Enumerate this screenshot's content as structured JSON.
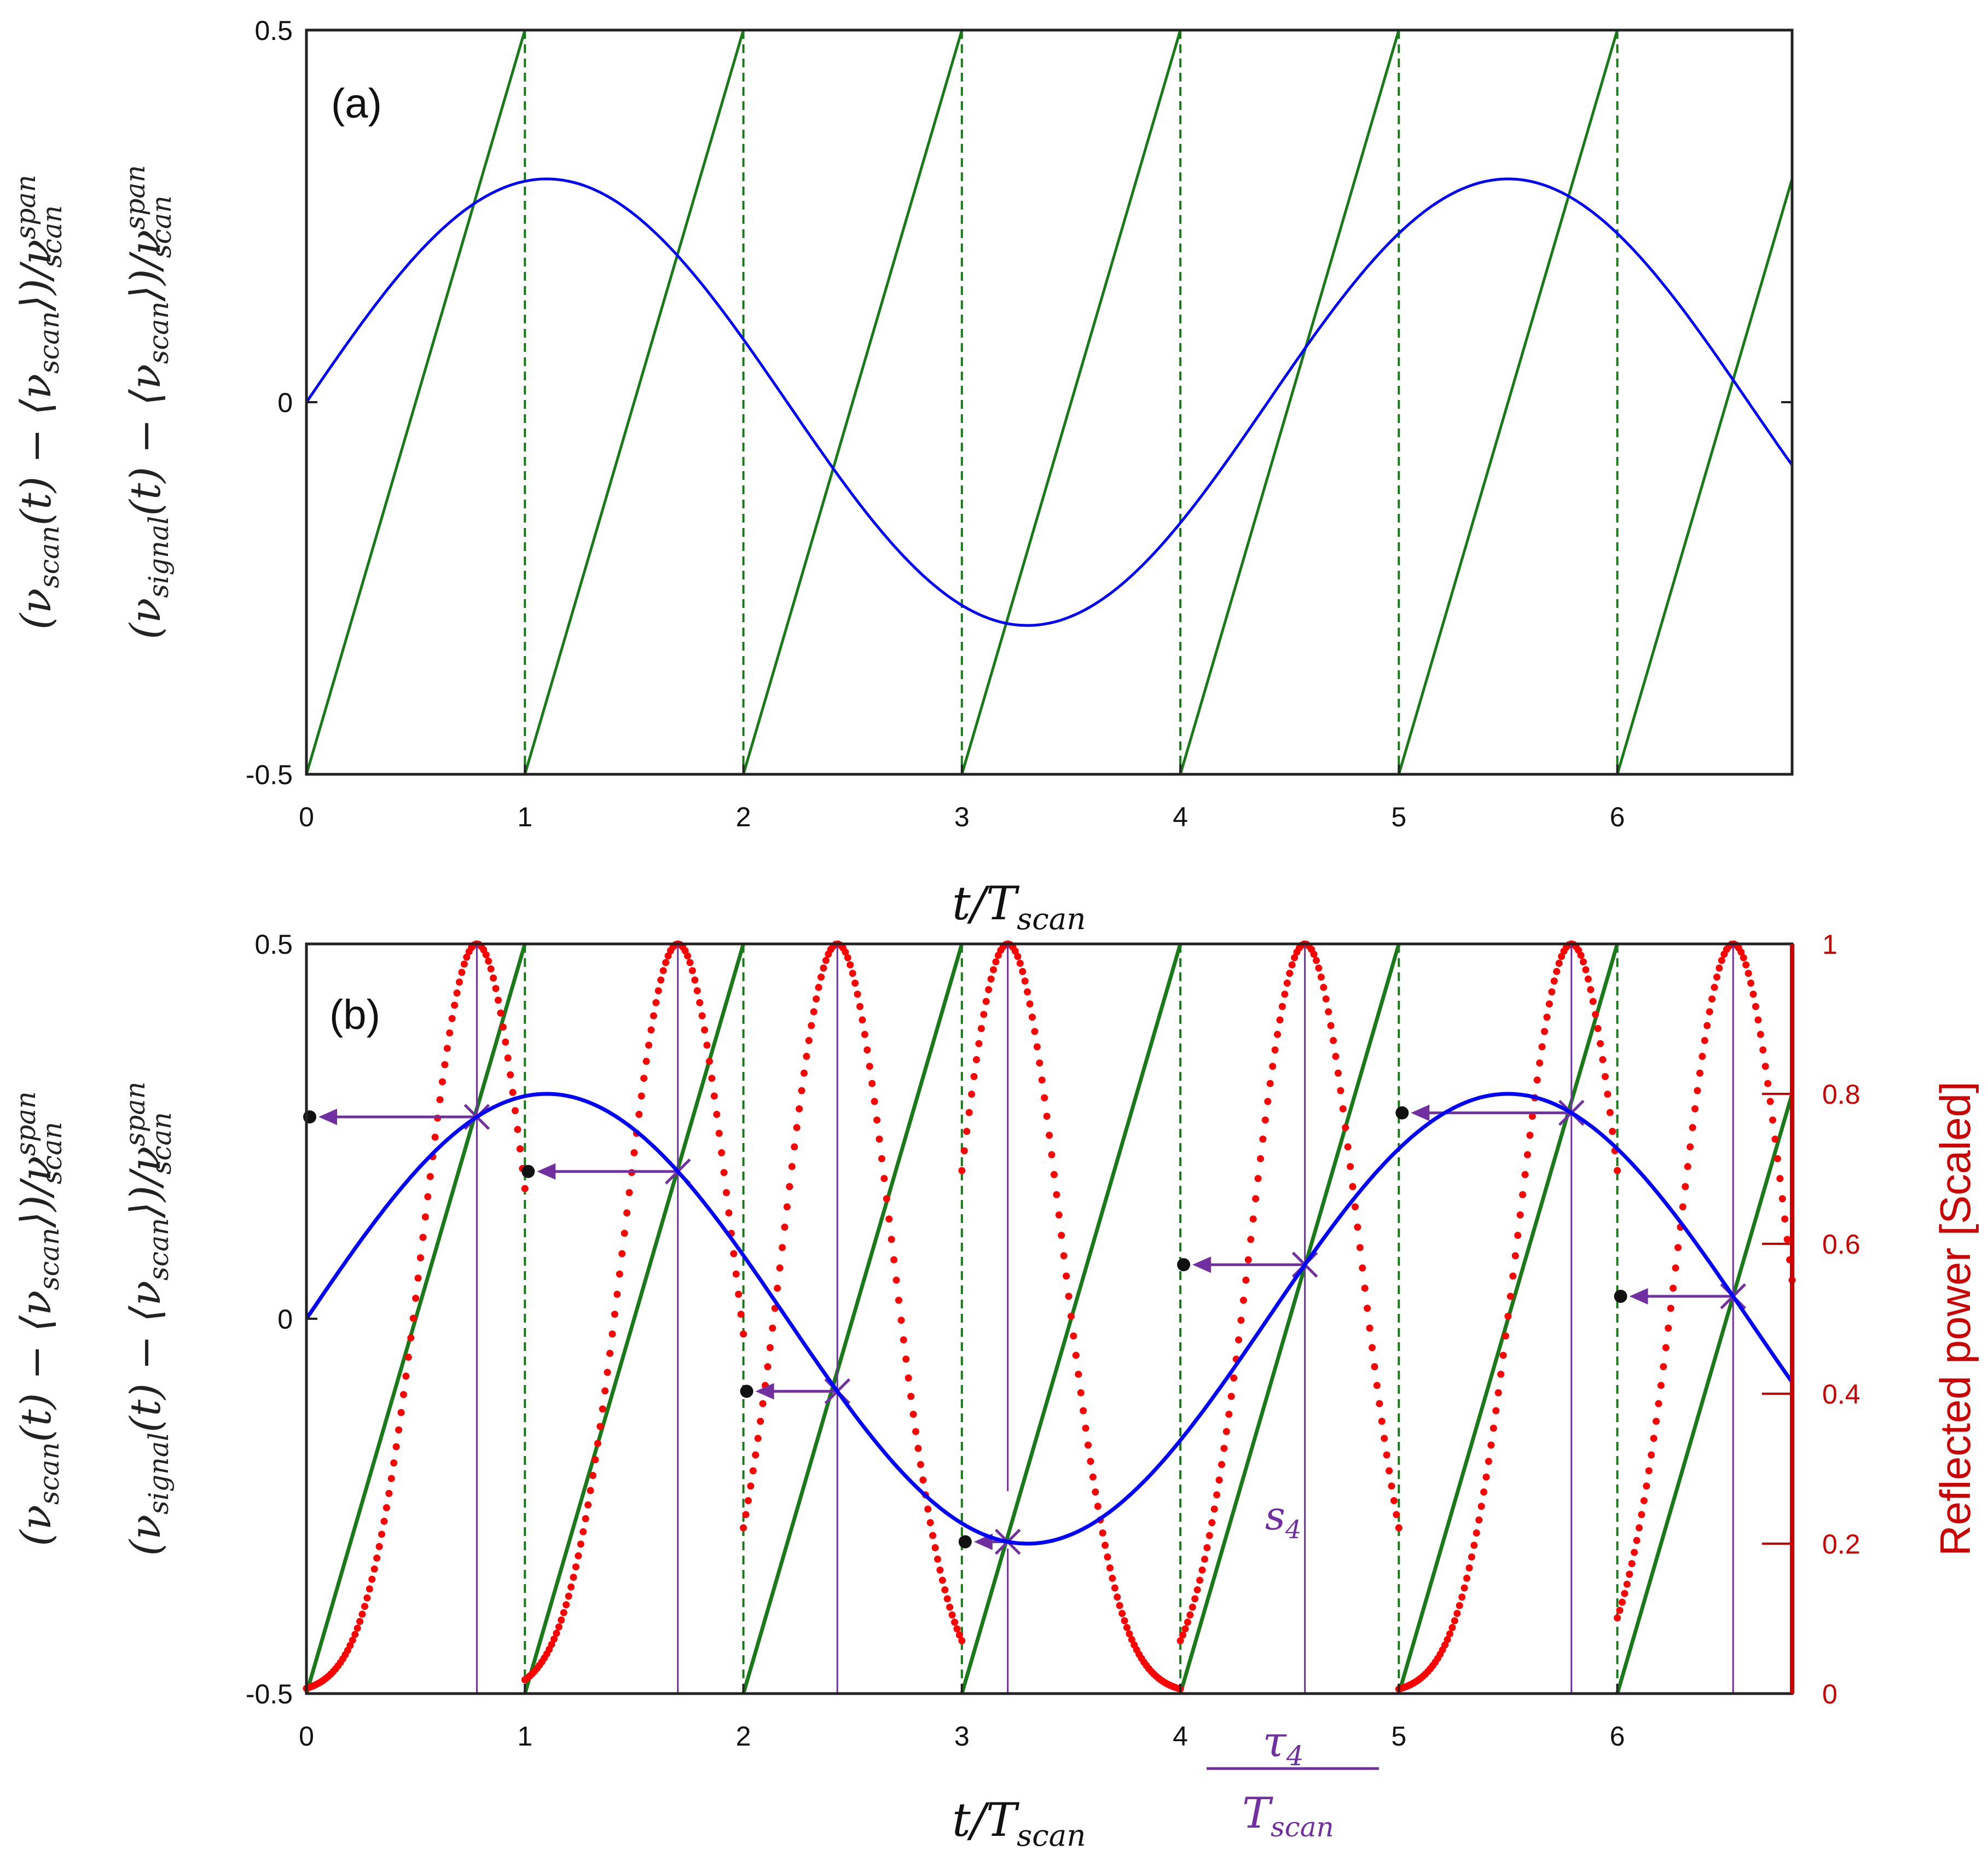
{
  "chart_data": [
    {
      "panel": "a",
      "type": "line",
      "panel_label": "(a)",
      "xlabel": "t/T_scan",
      "xlabel_parts": {
        "main": "t/T",
        "sub": "scan"
      },
      "ylabel_outer": "(ν_scan(t) − ⟨ν_scan⟩)/ν_scan^span",
      "ylabel_inner": "(ν_signal(t) − ⟨ν_scan⟩)/ν_scan^span",
      "ylabel_outer_parts": {
        "lead": "(ν",
        "sub1": "scan",
        "mid": "(t) − ⟨ν",
        "sub2": "scan",
        "tail": "⟩)/ν",
        "sup": "span",
        "sub3": "scan"
      },
      "ylabel_inner_parts": {
        "lead": "(ν",
        "sub1": "signal",
        "mid": "(t) − ⟨ν",
        "sub2": "scan",
        "tail": "⟩)/ν",
        "sup": "span",
        "sub3": "scan"
      },
      "xlim": [
        0,
        6.8
      ],
      "ylim": [
        -0.5,
        0.5
      ],
      "xticks": [
        "0",
        "1",
        "2",
        "3",
        "4",
        "5",
        "6"
      ],
      "yticks": [
        "-0.5",
        "0",
        "0.5"
      ],
      "series": [
        {
          "name": "scan (sawtooth)",
          "color": "#1a7a1a",
          "kind": "sawtooth",
          "period": 1,
          "min": -0.5,
          "max": 0.5
        },
        {
          "name": "signal (sinusoid)",
          "color": "#0000ff",
          "kind": "sine",
          "amplitude": 0.3,
          "period": 4.4,
          "phase": 0
        },
        {
          "name": "scan resets (dashed)",
          "color": "#1a7a1a",
          "kind": "vlines",
          "x": [
            0,
            1,
            2,
            3,
            4,
            5,
            6
          ]
        }
      ]
    },
    {
      "panel": "b",
      "type": "line",
      "panel_label": "(b)",
      "xlabel": "t/T_scan",
      "xlabel_parts": {
        "main": "t/T",
        "sub": "scan"
      },
      "ylabel_outer": "(ν_scan(t) − ⟨ν_scan⟩)/ν_scan^span",
      "ylabel_inner": "(ν_signal(t) − ⟨ν_scan⟩)/ν_scan^span",
      "ylabel_outer_parts": {
        "lead": "(ν",
        "sub1": "scan",
        "mid": "(t) − ⟨ν",
        "sub2": "scan",
        "tail": "⟩)/ν",
        "sup": "span",
        "sub3": "scan"
      },
      "ylabel_inner_parts": {
        "lead": "(ν",
        "sub1": "signal",
        "mid": "(t) − ⟨ν",
        "sub2": "scan",
        "tail": "⟩)/ν",
        "sup": "span",
        "sub3": "scan"
      },
      "right_ylabel": "Reflected power [Scaled]",
      "xlim": [
        0,
        6.8
      ],
      "ylim": [
        -0.5,
        0.5
      ],
      "right_ylim": [
        0,
        1
      ],
      "xticks": [
        "0",
        "1",
        "2",
        "3",
        "4",
        "5",
        "6"
      ],
      "yticks": [
        "-0.5",
        "0",
        "0.5"
      ],
      "right_yticks": [
        "0",
        "0.2",
        "0.4",
        "0.6",
        "0.8",
        "1"
      ],
      "annotation_tau": {
        "num": "τ",
        "num_sub": "4",
        "den": "T",
        "den_sub": "scan"
      },
      "annotation_s": {
        "main": "s",
        "sub": "4"
      },
      "annotation_index": 4,
      "resonance_times": [
        0.78,
        1.7,
        2.43,
        3.21,
        4.57,
        5.79,
        6.53
      ],
      "series": [
        {
          "name": "scan (sawtooth)",
          "color": "#1a7a1a",
          "kind": "sawtooth",
          "period": 1,
          "min": -0.5,
          "max": 0.5
        },
        {
          "name": "signal (sinusoid)",
          "color": "#0000ff",
          "kind": "sine",
          "amplitude": 0.3,
          "period": 4.4,
          "phase": 0
        },
        {
          "name": "reflected power (scaled)",
          "color": "#ff0000",
          "kind": "peaks",
          "axis": "right",
          "peak_value": 1
        },
        {
          "name": "sampled signal levels",
          "color": "#7030a0",
          "kind": "arrows"
        }
      ]
    }
  ]
}
